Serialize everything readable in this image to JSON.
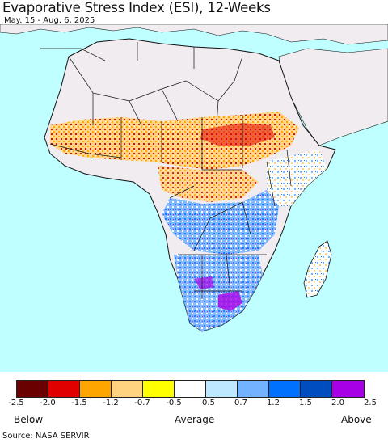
{
  "title": "Evaporative Stress Index (ESI), 12-Weeks",
  "subtitle": "May. 15 - Aug. 6, 2025",
  "legend": {
    "colors": [
      "#6b0000",
      "#e00000",
      "#ffa500",
      "#ffd37f",
      "#ffff00",
      "#ffffff",
      "#bee8ff",
      "#73b2ff",
      "#0070ff",
      "#004dc0",
      "#a800e6"
    ],
    "ticks": [
      "-2.5",
      "-2.0",
      "-1.5",
      "-1.2",
      "-0.7",
      "-0.5",
      "0.5",
      "0.7",
      "1.2",
      "1.5",
      "2.0",
      "2.5"
    ],
    "below": "Below",
    "average": "Average",
    "above": "Above"
  },
  "map_colors": {
    "ocean": "#bfffff",
    "no_data_land": "#f0ecf0",
    "border": "#111111"
  },
  "source": "Source: NASA SERVIR"
}
